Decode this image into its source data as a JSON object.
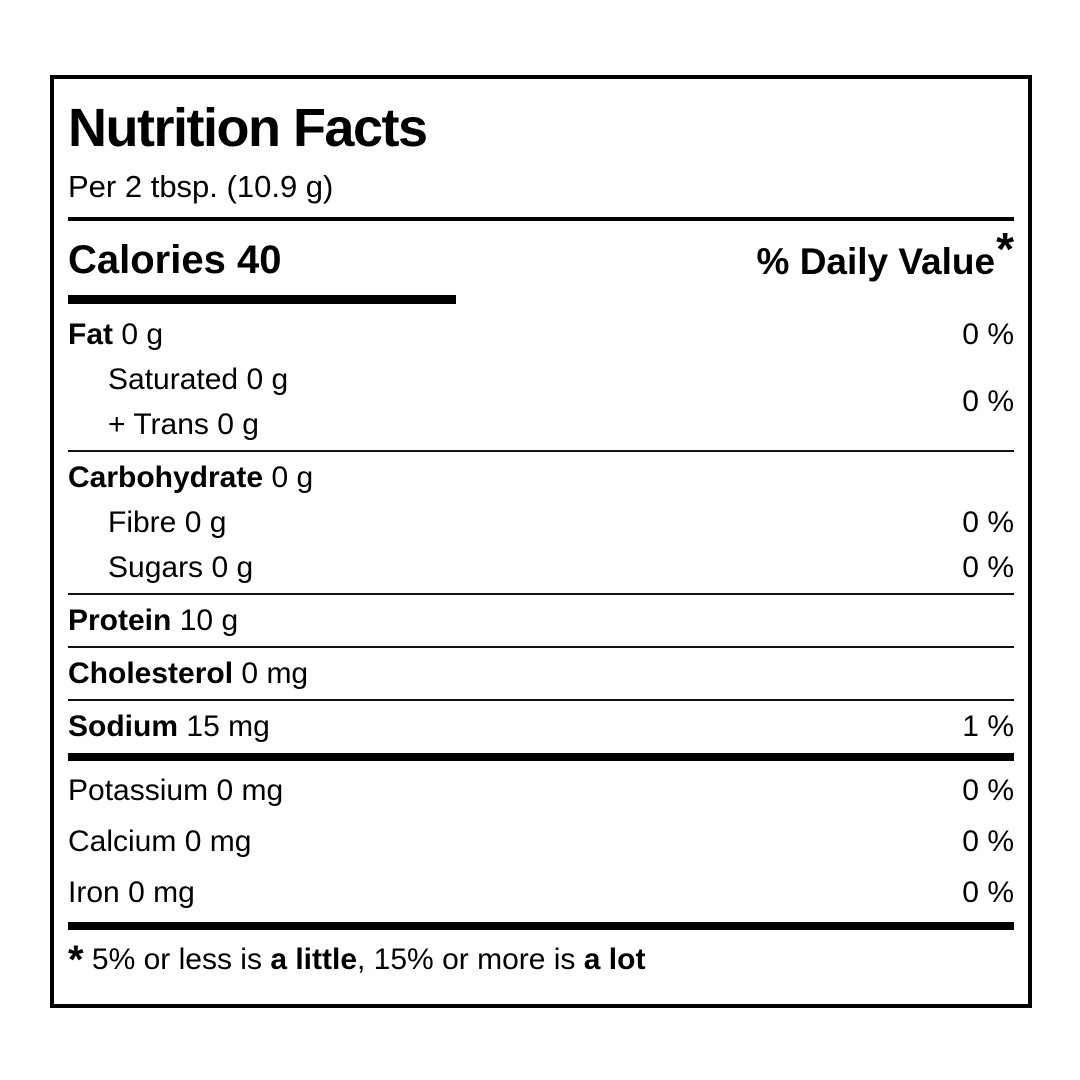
{
  "header": {
    "title": "Nutrition Facts",
    "serving": "Per 2 tbsp. (10.9 g)",
    "calories_label": "Calories",
    "calories_value": "40",
    "daily_value_label": "% Daily Value",
    "daily_value_asterisk": "*"
  },
  "nutrients": {
    "fat": {
      "label": "Fat",
      "amount": "0 g",
      "dv": "0 %"
    },
    "saturated": {
      "label": "Saturated",
      "amount": "0 g"
    },
    "trans": {
      "label": "+ Trans",
      "amount": "0 g"
    },
    "saturated_trans_dv": "0 %",
    "carbohydrate": {
      "label": "Carbohydrate",
      "amount": "0 g"
    },
    "fibre": {
      "label": "Fibre",
      "amount": "0 g",
      "dv": "0 %"
    },
    "sugars": {
      "label": "Sugars",
      "amount": "0 g",
      "dv": "0 %"
    },
    "protein": {
      "label": "Protein",
      "amount": "10 g"
    },
    "cholesterol": {
      "label": "Cholesterol",
      "amount": "0 mg"
    },
    "sodium": {
      "label": "Sodium",
      "amount": "15 mg",
      "dv": "1 %"
    },
    "potassium": {
      "label": "Potassium",
      "amount": "0 mg",
      "dv": "0 %"
    },
    "calcium": {
      "label": "Calcium",
      "amount": "0 mg",
      "dv": "0 %"
    },
    "iron": {
      "label": "Iron",
      "amount": "0 mg",
      "dv": "0 %"
    }
  },
  "footnote": {
    "asterisk": "*",
    "text1": " 5% or less is ",
    "bold1": "a little",
    "text2": ", 15% or more is ",
    "bold2": "a lot"
  },
  "colors": {
    "text": "#000000",
    "background": "#ffffff",
    "rule": "#000000"
  }
}
